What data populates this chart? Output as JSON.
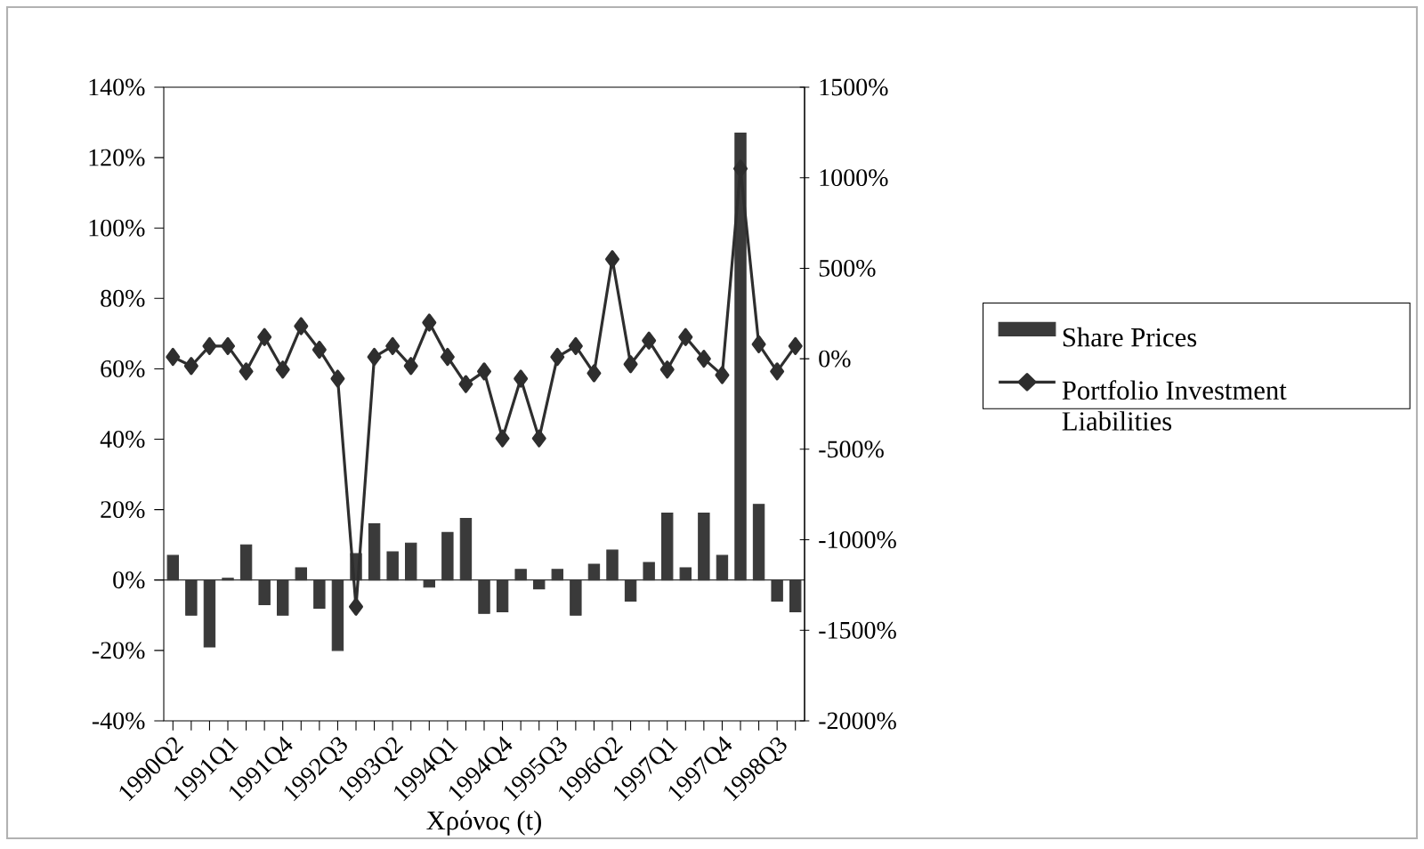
{
  "chart_data": {
    "type": "bar",
    "categories": [
      "1990Q2",
      null,
      null,
      "1991Q1",
      null,
      null,
      "1991Q4",
      null,
      null,
      "1992Q3",
      null,
      null,
      "1993Q2",
      null,
      null,
      "1994Q1",
      null,
      null,
      "1994Q4",
      null,
      null,
      "1995Q3",
      null,
      null,
      "1996Q2",
      null,
      null,
      "1997Q1",
      null,
      null,
      "1997Q4",
      null,
      null,
      "1998Q3",
      null
    ],
    "series": [
      {
        "name": "Share Prices",
        "color": "#3a3a3a",
        "values": [
          7,
          -10,
          -19,
          0.5,
          10,
          -7,
          -10,
          3.5,
          -8,
          -20,
          7.5,
          16,
          8,
          10.5,
          -2,
          13.5,
          17.5,
          -9.5,
          -9,
          3,
          -2.5,
          3,
          -10,
          4.5,
          8.5,
          -6,
          5,
          19,
          3.5,
          19,
          7,
          127,
          21.5,
          -6,
          -9
        ]
      },
      {
        "name": "Portfolio Investment Liabilities",
        "type": "line",
        "axis": "y2",
        "marker": "diamond",
        "color": "#2e2e2e",
        "values": [
          10,
          -40,
          70,
          70,
          -70,
          120,
          -60,
          180,
          50,
          -110,
          -1370,
          10,
          70,
          -40,
          200,
          10,
          -140,
          -70,
          -440,
          -110,
          -440,
          10,
          70,
          -80,
          550,
          -30,
          100,
          -60,
          120,
          0,
          -90,
          1050,
          80,
          -70,
          70
        ]
      }
    ],
    "xlabel": "Χρόνος (t)",
    "ylim": [
      -40,
      140
    ],
    "yticks": [
      {
        "value": -40,
        "label": "-40%"
      },
      {
        "value": -20,
        "label": "-20%"
      },
      {
        "value": 0,
        "label": "0%"
      },
      {
        "value": 20,
        "label": "20%"
      },
      {
        "value": 40,
        "label": "40%"
      },
      {
        "value": 60,
        "label": "60%"
      },
      {
        "value": 80,
        "label": "80%"
      },
      {
        "value": 100,
        "label": "100%"
      },
      {
        "value": 120,
        "label": "120%"
      },
      {
        "value": 140,
        "label": "140%"
      }
    ],
    "y2lim": [
      -2000,
      1500
    ],
    "y2ticks": [
      {
        "value": -2000,
        "label": "-2000%"
      },
      {
        "value": -1500,
        "label": "-1500%"
      },
      {
        "value": -1000,
        "label": "-1000%"
      },
      {
        "value": -500,
        "label": "-500%"
      },
      {
        "value": 0,
        "label": "0%"
      },
      {
        "value": 500,
        "label": "500%"
      },
      {
        "value": 1000,
        "label": "1000%"
      },
      {
        "value": 1500,
        "label": "1500%"
      }
    ],
    "legend": "right"
  }
}
